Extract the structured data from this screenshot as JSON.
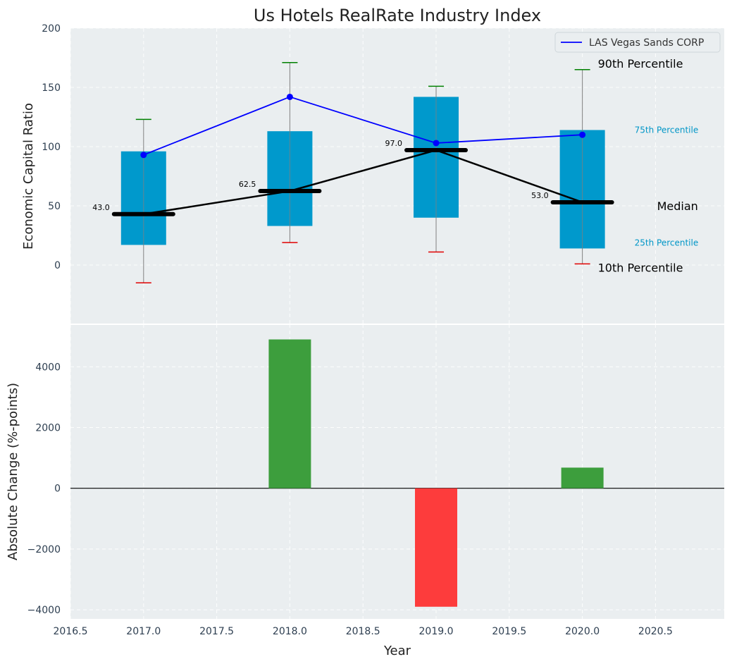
{
  "chart_data": [
    {
      "type": "box",
      "title": "Us Hotels RealRate Industry Index",
      "ylabel": "Economic Capital Ratio",
      "ylim": [
        -50,
        200
      ],
      "yticks": [
        0,
        50,
        100,
        150,
        200
      ],
      "grid": true,
      "legend": {
        "position": "top-right",
        "entries": [
          "LAS Vegas Sands CORP"
        ]
      },
      "categories": [
        2017,
        2018,
        2019,
        2020
      ],
      "percentiles": {
        "p10": [
          -15,
          19,
          11,
          1
        ],
        "p25": [
          17,
          33,
          40,
          14
        ],
        "median": [
          43.0,
          62.5,
          97.0,
          53.0
        ],
        "p75": [
          96,
          113,
          142,
          114
        ],
        "p90": [
          123,
          171,
          151,
          165
        ]
      },
      "median_labels": [
        "43.0",
        "62.5",
        "97.0",
        "53.0"
      ],
      "series": [
        {
          "name": "LAS Vegas Sands CORP",
          "values": [
            93,
            142,
            103,
            110
          ],
          "color": "#0000ff"
        }
      ],
      "annotations": {
        "p90": "90th Percentile",
        "p75": "75th Percentile",
        "median": "Median",
        "p25": "25th Percentile",
        "p10": "10th Percentile"
      }
    },
    {
      "type": "bar",
      "xlabel": "Year",
      "ylabel": "Absolute Change (%-points)",
      "ylim": [
        -4300,
        5400
      ],
      "yticks": [
        -4000,
        -2000,
        0,
        2000,
        4000
      ],
      "ytick_labels": [
        "−4000",
        "−2000",
        "0",
        "2000",
        "4000"
      ],
      "xlim": [
        2016.5,
        2020.97
      ],
      "xticks": [
        2016.5,
        2017.0,
        2017.5,
        2018.0,
        2018.5,
        2019.0,
        2019.5,
        2020.0,
        2020.5
      ],
      "xtick_labels": [
        "2016.5",
        "2017.0",
        "2017.5",
        "2018.0",
        "2018.5",
        "2019.0",
        "2019.5",
        "2020.0",
        "2020.5"
      ],
      "grid": true,
      "x": [
        2018,
        2019,
        2020
      ],
      "values": [
        4900,
        -3900,
        680
      ],
      "colors": {
        "positive": "#3d9e3d",
        "negative": "#fd3c3c"
      }
    }
  ],
  "colors": {
    "plot_bg": "#eaeef0",
    "box_fill": "#0099cc",
    "whisker": "#808080",
    "p90_cap": "#008000",
    "p10_cap": "#e00000",
    "median_line": "#000000"
  }
}
